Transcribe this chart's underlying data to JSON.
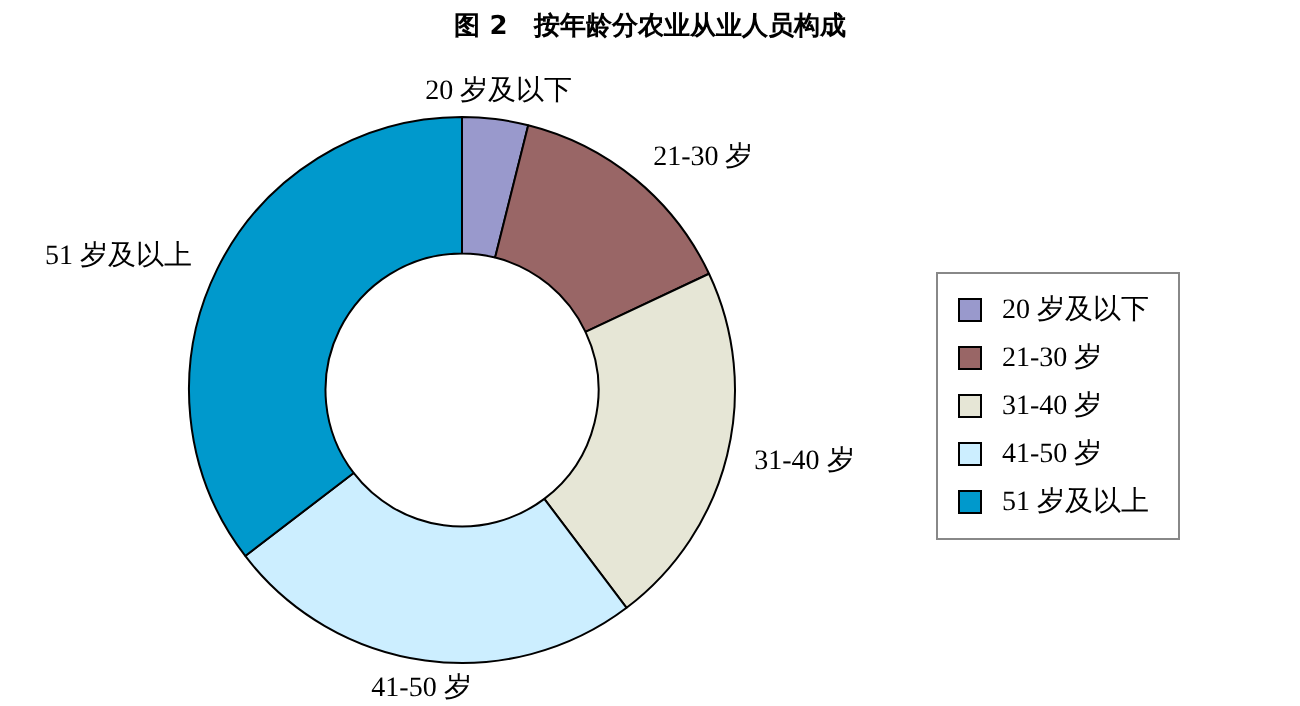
{
  "chart_data": {
    "type": "donut",
    "title": "图 2　按年龄分农业从业人员构成",
    "categories": [
      "20 岁及以下",
      "21-30 岁",
      "31-40 岁",
      "41-50 岁",
      "51 岁及以上"
    ],
    "values": [
      3.9,
      14.1,
      21.7,
      24.9,
      35.4
    ],
    "colors": [
      "#9999cc",
      "#996666",
      "#e6e6d6",
      "#cceeff",
      "#0099cc"
    ],
    "legend": "right"
  }
}
